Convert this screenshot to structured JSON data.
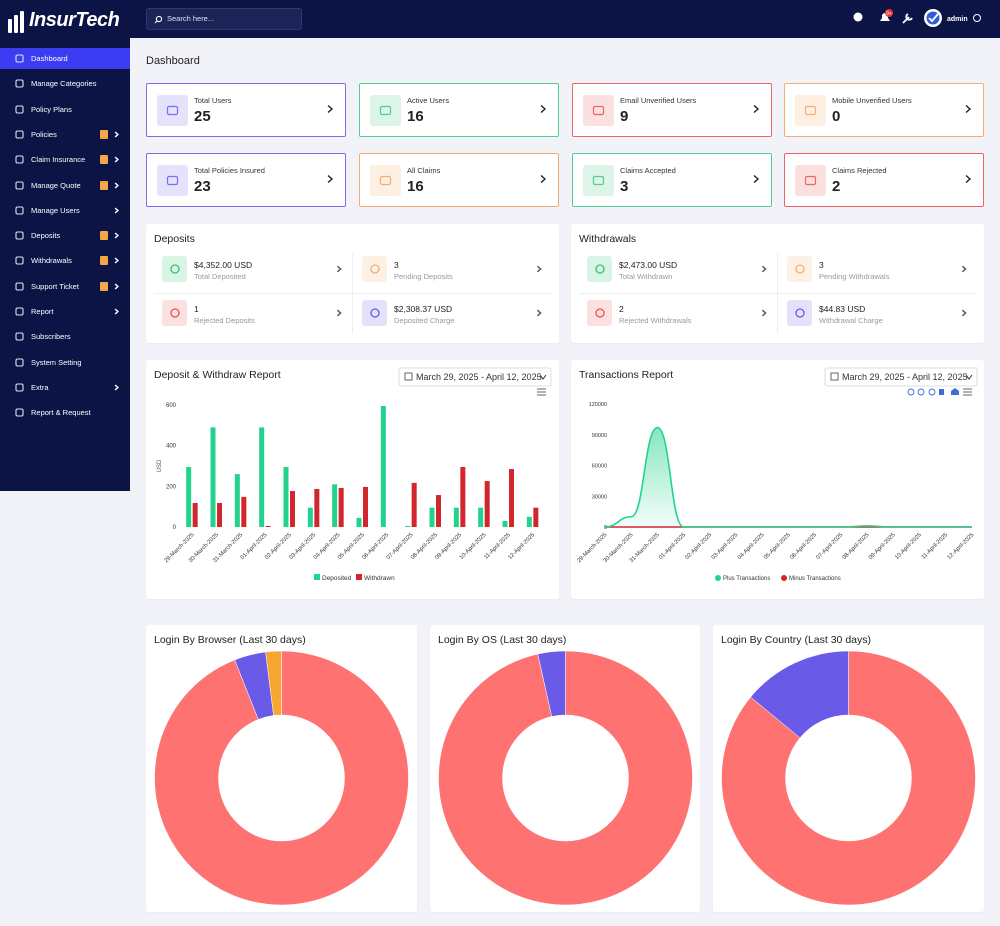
{
  "brand": "InsurTech",
  "search_placeholder": "Search here...",
  "notification_badge": "9+",
  "user": "admin",
  "sidebar": [
    {
      "label": "Dashboard",
      "active": true
    },
    {
      "label": "Manage Categories"
    },
    {
      "label": "Policy Plans"
    },
    {
      "label": "Policies",
      "badge": true,
      "submenu": true
    },
    {
      "label": "Claim Insurance",
      "badge": true,
      "submenu": true
    },
    {
      "label": "Manage Quote",
      "badge": true,
      "submenu": true
    },
    {
      "label": "Manage Users",
      "submenu": true
    },
    {
      "label": "Deposits",
      "badge": true,
      "submenu": true
    },
    {
      "label": "Withdrawals",
      "badge": true,
      "submenu": true
    },
    {
      "label": "Support Ticket",
      "badge": true,
      "submenu": true
    },
    {
      "label": "Report",
      "submenu": true
    },
    {
      "label": "Subscribers"
    },
    {
      "label": "System Setting"
    },
    {
      "label": "Extra",
      "submenu": true
    },
    {
      "label": "Report & Request"
    }
  ],
  "page_title": "Dashboard",
  "stats": [
    {
      "label": "Total Users",
      "value": "25",
      "color": "#7b6cf2"
    },
    {
      "label": "Active Users",
      "value": "16",
      "color": "#4fcf8e"
    },
    {
      "label": "Email Unverified Users",
      "value": "9",
      "color": "#ec6464"
    },
    {
      "label": "Mobile Unverified Users",
      "value": "0",
      "color": "#f4ad6f"
    },
    {
      "label": "Total Policies Insured",
      "value": "23",
      "color": "#7b6cf2"
    },
    {
      "label": "All Claims",
      "value": "16",
      "color": "#f4ad6f"
    },
    {
      "label": "Claims Accepted",
      "value": "3",
      "color": "#4fcf8e"
    },
    {
      "label": "Claims Rejected",
      "value": "2",
      "color": "#ec6464"
    }
  ],
  "deposits": {
    "title": "Deposits",
    "items": [
      {
        "value": "$4,352.00 USD",
        "label": "Total Deposited",
        "color": "#2fc46f"
      },
      {
        "value": "3",
        "label": "Pending Deposits",
        "color": "#f4ad6f"
      },
      {
        "value": "1",
        "label": "Rejected Deposits",
        "color": "#ec4f4f"
      },
      {
        "value": "$2,308.37 USD",
        "label": "Deposited Charge",
        "color": "#6a5ae8"
      }
    ]
  },
  "withdrawals": {
    "title": "Withdrawals",
    "items": [
      {
        "value": "$2,473.00 USD",
        "label": "Total Withdrawn",
        "color": "#2fc46f"
      },
      {
        "value": "3",
        "label": "Pending Withdrawals",
        "color": "#f4ad6f"
      },
      {
        "value": "2",
        "label": "Rejected Withdrawals",
        "color": "#ec4f4f"
      },
      {
        "value": "$44.83 USD",
        "label": "Withdrawal Charge",
        "color": "#6a5ae8"
      }
    ]
  },
  "chart_data": [
    {
      "type": "bar",
      "title": "Deposit & Withdraw Report",
      "date_range": "March 29, 2025 - April 12, 2025",
      "ylabel": "USD",
      "categories": [
        "29-March-2025",
        "30-March-2025",
        "31-March-2025",
        "01-April-2025",
        "02-April-2025",
        "03-April-2025",
        "04-April-2025",
        "05-April-2025",
        "06-April-2025",
        "07-April-2025",
        "08-April-2025",
        "09-April-2025",
        "10-April-2025",
        "11-April-2025",
        "12-April-2025"
      ],
      "series": [
        {
          "name": "Deposited",
          "color": "#22d38e",
          "values": [
            295,
            490,
            260,
            490,
            295,
            95,
            210,
            45,
            595,
            5,
            95,
            95,
            95,
            30,
            50
          ]
        },
        {
          "name": "Withdrawn",
          "color": "#d0262c",
          "values": [
            118,
            118,
            148,
            5,
            177,
            187,
            192,
            197,
            0,
            217,
            157,
            295,
            226,
            285,
            95
          ]
        }
      ],
      "ylim": [
        0,
        600
      ],
      "yticks": [
        0,
        200,
        400,
        600
      ]
    },
    {
      "type": "area",
      "title": "Transactions Report",
      "date_range": "March 29, 2025 - April 12, 2025",
      "categories": [
        "29-March-2025",
        "30-March-2025",
        "31-March-2025",
        "01-April-2025",
        "02-April-2025",
        "03-April-2025",
        "04-April-2025",
        "05-April-2025",
        "06-April-2025",
        "07-April-2025",
        "08-April-2025",
        "09-April-2025",
        "10-April-2025",
        "11-April-2025",
        "12-April-2025"
      ],
      "series": [
        {
          "name": "Minus Transactions",
          "color": "#d0262c",
          "values": [
            0,
            0,
            0,
            0,
            0,
            0,
            0,
            0,
            0,
            0,
            0,
            0,
            0,
            0,
            0
          ]
        },
        {
          "name": "Plus Transactions",
          "color": "#22d38e",
          "values": [
            0,
            10000,
            97000,
            0,
            0,
            0,
            0,
            0,
            0,
            0,
            1000,
            0,
            0,
            0,
            0
          ]
        }
      ],
      "ylim": [
        0,
        120000
      ],
      "yticks": [
        0,
        30000,
        60000,
        90000,
        120000
      ]
    },
    {
      "type": "pie",
      "title": "Login By Browser (Last 30 days)",
      "values": [
        94,
        4,
        2
      ],
      "colors": [
        "#fe7371",
        "#6a5ae8",
        "#f9a532"
      ]
    },
    {
      "type": "pie",
      "title": "Login By OS (Last 30 days)",
      "values": [
        96.5,
        3.5
      ],
      "colors": [
        "#fe7371",
        "#6a5ae8"
      ]
    },
    {
      "type": "pie",
      "title": "Login By Country (Last 30 days)",
      "values": [
        86,
        14
      ],
      "colors": [
        "#fe7371",
        "#6a5ae8"
      ]
    }
  ]
}
